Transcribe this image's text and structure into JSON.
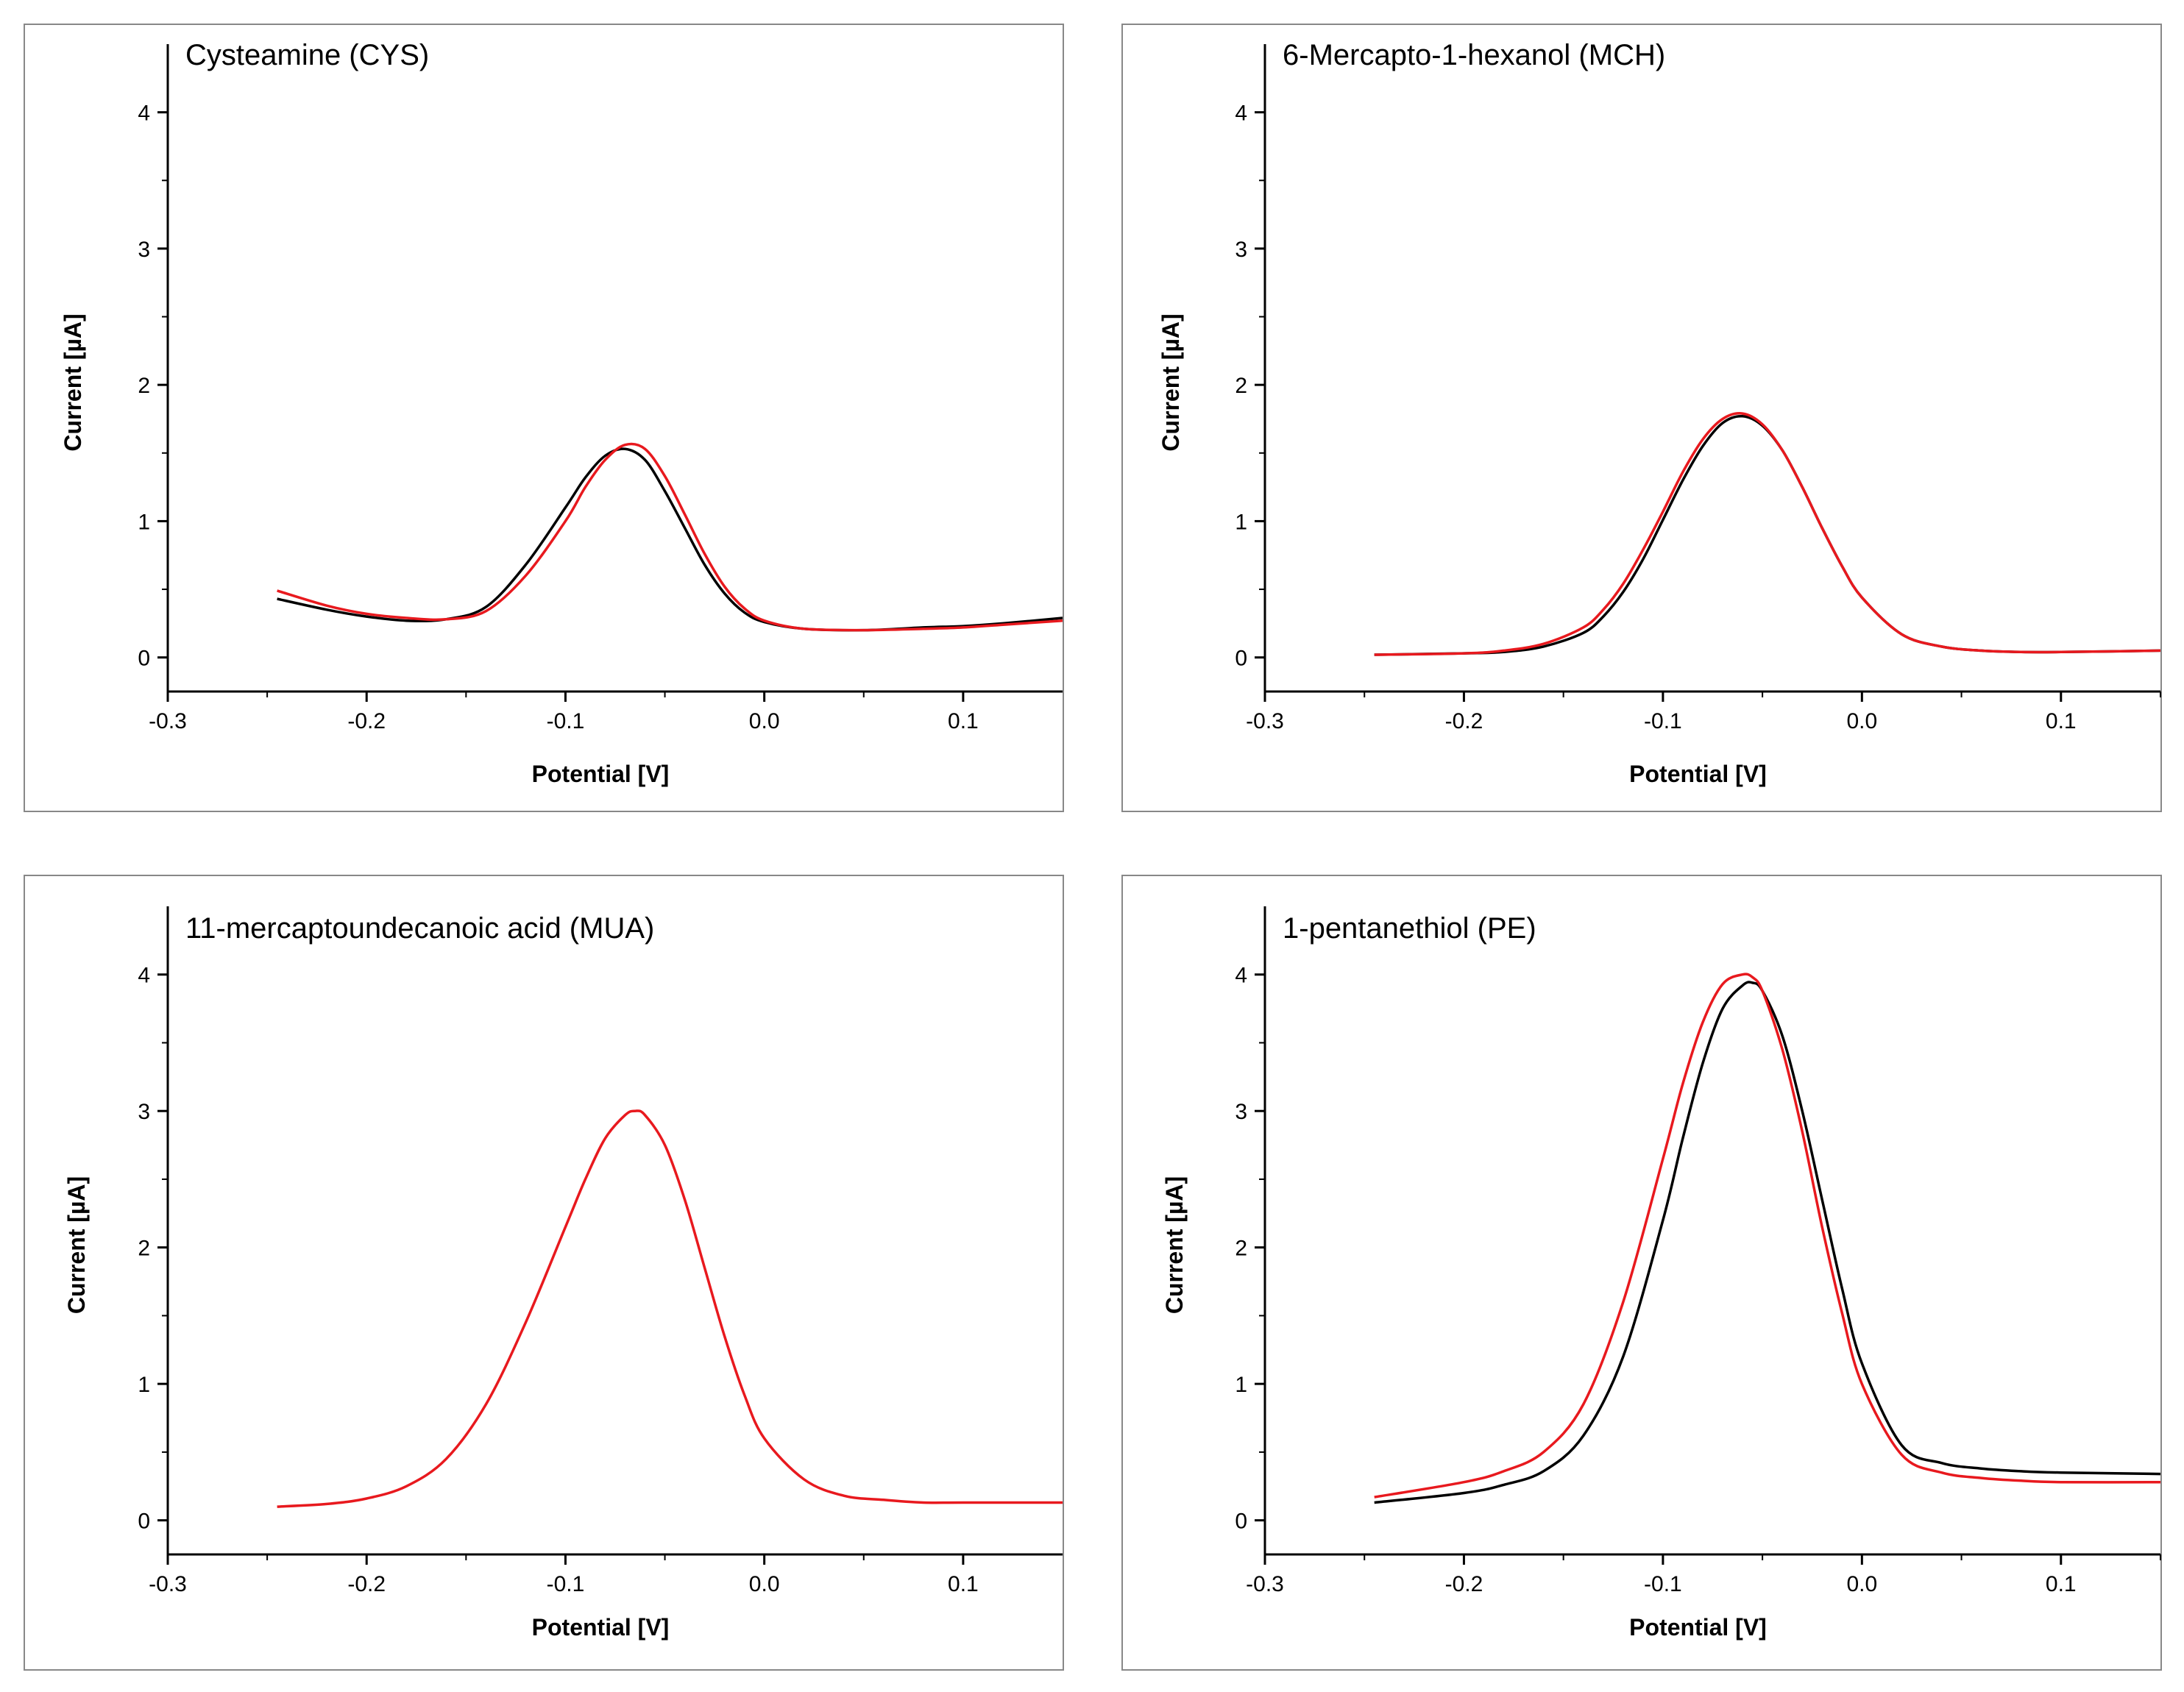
{
  "chart_data": [
    {
      "type": "line",
      "title": "Cysteamine (CYS)",
      "xlabel": "Potential [V]",
      "ylabel": "Current [µA]",
      "xlim": [
        -0.3,
        0.15
      ],
      "ylim": [
        -0.25,
        4.5
      ],
      "xticks": [
        -0.3,
        -0.2,
        -0.1,
        0.0,
        0.1
      ],
      "xtick_labels": [
        "-0.3",
        "-0.2",
        "-0.1",
        "0.0",
        "0.1"
      ],
      "yticks": [
        0,
        1,
        2,
        3,
        4
      ],
      "ytick_labels": [
        "0",
        "1",
        "2",
        "3",
        "4"
      ],
      "grid": false,
      "series": [
        {
          "name": "black",
          "color": "#000000",
          "x": [
            -0.245,
            -0.22,
            -0.2,
            -0.18,
            -0.16,
            -0.14,
            -0.12,
            -0.1,
            -0.09,
            -0.08,
            -0.07,
            -0.06,
            -0.05,
            -0.04,
            -0.03,
            -0.02,
            -0.01,
            0.0,
            0.02,
            0.05,
            0.08,
            0.1,
            0.12,
            0.15
          ],
          "y": [
            0.43,
            0.35,
            0.3,
            0.27,
            0.28,
            0.37,
            0.68,
            1.1,
            1.32,
            1.48,
            1.53,
            1.45,
            1.22,
            0.95,
            0.68,
            0.47,
            0.33,
            0.26,
            0.21,
            0.2,
            0.22,
            0.23,
            0.25,
            0.29
          ]
        },
        {
          "name": "red",
          "color": "#e8191e",
          "x": [
            -0.245,
            -0.22,
            -0.2,
            -0.18,
            -0.16,
            -0.14,
            -0.12,
            -0.1,
            -0.09,
            -0.08,
            -0.07,
            -0.06,
            -0.05,
            -0.04,
            -0.03,
            -0.02,
            -0.01,
            0.0,
            0.02,
            0.05,
            0.08,
            0.1,
            0.12,
            0.15
          ],
          "y": [
            0.49,
            0.38,
            0.32,
            0.29,
            0.28,
            0.34,
            0.6,
            1.0,
            1.25,
            1.45,
            1.56,
            1.53,
            1.33,
            1.05,
            0.76,
            0.52,
            0.36,
            0.27,
            0.21,
            0.2,
            0.21,
            0.22,
            0.24,
            0.27
          ]
        }
      ]
    },
    {
      "type": "line",
      "title": "6-Mercapto-1-hexanol (MCH)",
      "xlabel": "Potential [V]",
      "ylabel": "Current [µA]",
      "xlim": [
        -0.3,
        0.15
      ],
      "ylim": [
        -0.25,
        4.5
      ],
      "xticks": [
        -0.3,
        -0.2,
        -0.1,
        0.0,
        0.1
      ],
      "xtick_labels": [
        "-0.3",
        "-0.2",
        "-0.1",
        "0.0",
        "0.1"
      ],
      "yticks": [
        0,
        1,
        2,
        3,
        4
      ],
      "ytick_labels": [
        "0",
        "1",
        "2",
        "3",
        "4"
      ],
      "grid": false,
      "series": [
        {
          "name": "black",
          "color": "#000000",
          "x": [
            -0.245,
            -0.2,
            -0.18,
            -0.16,
            -0.14,
            -0.13,
            -0.12,
            -0.11,
            -0.1,
            -0.09,
            -0.08,
            -0.07,
            -0.06,
            -0.05,
            -0.04,
            -0.03,
            -0.02,
            -0.01,
            0.0,
            0.02,
            0.04,
            0.06,
            0.08,
            0.1,
            0.15
          ],
          "y": [
            0.02,
            0.03,
            0.04,
            0.08,
            0.18,
            0.3,
            0.48,
            0.72,
            1.01,
            1.3,
            1.55,
            1.72,
            1.77,
            1.7,
            1.52,
            1.25,
            0.95,
            0.67,
            0.44,
            0.17,
            0.08,
            0.05,
            0.04,
            0.04,
            0.05
          ]
        },
        {
          "name": "red",
          "color": "#e8191e",
          "x": [
            -0.245,
            -0.2,
            -0.18,
            -0.16,
            -0.14,
            -0.13,
            -0.12,
            -0.11,
            -0.1,
            -0.09,
            -0.08,
            -0.07,
            -0.06,
            -0.05,
            -0.04,
            -0.03,
            -0.02,
            -0.01,
            0.0,
            0.02,
            0.04,
            0.06,
            0.08,
            0.1,
            0.15
          ],
          "y": [
            0.02,
            0.03,
            0.05,
            0.1,
            0.22,
            0.35,
            0.54,
            0.79,
            1.07,
            1.36,
            1.6,
            1.75,
            1.79,
            1.71,
            1.52,
            1.25,
            0.95,
            0.67,
            0.44,
            0.17,
            0.08,
            0.05,
            0.04,
            0.04,
            0.05
          ]
        }
      ]
    },
    {
      "type": "line",
      "title": "11-mercaptoundecanoic acid (MUA)",
      "xlabel": "Potential [V]",
      "ylabel": "Current [µA]",
      "xlim": [
        -0.3,
        0.15
      ],
      "ylim": [
        -0.25,
        4.5
      ],
      "xticks": [
        -0.3,
        -0.2,
        -0.1,
        0.0,
        0.1
      ],
      "xtick_labels": [
        "-0.3",
        "-0.2",
        "-0.1",
        "0.0",
        "0.1"
      ],
      "yticks": [
        0,
        1,
        2,
        3,
        4
      ],
      "ytick_labels": [
        "0",
        "1",
        "2",
        "3",
        "4"
      ],
      "grid": false,
      "series": [
        {
          "name": "red",
          "color": "#e8191e",
          "x": [
            -0.245,
            -0.22,
            -0.2,
            -0.18,
            -0.16,
            -0.14,
            -0.12,
            -0.1,
            -0.09,
            -0.08,
            -0.07,
            -0.065,
            -0.06,
            -0.05,
            -0.04,
            -0.03,
            -0.02,
            -0.01,
            0.0,
            0.02,
            0.04,
            0.06,
            0.08,
            0.1,
            0.15
          ],
          "y": [
            0.1,
            0.12,
            0.16,
            0.25,
            0.45,
            0.85,
            1.45,
            2.15,
            2.5,
            2.8,
            2.97,
            3.0,
            2.97,
            2.75,
            2.35,
            1.85,
            1.35,
            0.92,
            0.6,
            0.3,
            0.18,
            0.15,
            0.13,
            0.13,
            0.13
          ]
        }
      ]
    },
    {
      "type": "line",
      "title": "1-pentanethiol (PE)",
      "xlabel": "Potential [V]",
      "ylabel": "Current [µA]",
      "xlim": [
        -0.3,
        0.15
      ],
      "ylim": [
        -0.25,
        4.5
      ],
      "xticks": [
        -0.3,
        -0.2,
        -0.1,
        0.0,
        0.1
      ],
      "xtick_labels": [
        "-0.3",
        "-0.2",
        "-0.1",
        "0.0",
        "0.1"
      ],
      "yticks": [
        0,
        1,
        2,
        3,
        4
      ],
      "ytick_labels": [
        "0",
        "1",
        "2",
        "3",
        "4"
      ],
      "grid": false,
      "series": [
        {
          "name": "black",
          "color": "#000000",
          "x": [
            -0.245,
            -0.2,
            -0.18,
            -0.16,
            -0.14,
            -0.12,
            -0.1,
            -0.09,
            -0.08,
            -0.07,
            -0.06,
            -0.055,
            -0.05,
            -0.04,
            -0.03,
            -0.02,
            -0.01,
            0.0,
            0.02,
            0.04,
            0.06,
            0.08,
            0.1,
            0.15
          ],
          "y": [
            0.13,
            0.2,
            0.26,
            0.36,
            0.62,
            1.2,
            2.2,
            2.8,
            3.35,
            3.75,
            3.92,
            3.94,
            3.88,
            3.55,
            3.0,
            2.35,
            1.7,
            1.15,
            0.55,
            0.42,
            0.38,
            0.36,
            0.35,
            0.34
          ]
        },
        {
          "name": "red",
          "color": "#e8191e",
          "x": [
            -0.245,
            -0.2,
            -0.18,
            -0.16,
            -0.14,
            -0.12,
            -0.1,
            -0.09,
            -0.08,
            -0.07,
            -0.06,
            -0.055,
            -0.05,
            -0.04,
            -0.03,
            -0.02,
            -0.01,
            0.0,
            0.02,
            0.04,
            0.06,
            0.08,
            0.1,
            0.15
          ],
          "y": [
            0.17,
            0.28,
            0.36,
            0.5,
            0.85,
            1.6,
            2.65,
            3.2,
            3.65,
            3.93,
            4.0,
            3.98,
            3.88,
            3.45,
            2.85,
            2.15,
            1.52,
            1.0,
            0.48,
            0.35,
            0.31,
            0.29,
            0.28,
            0.28
          ]
        }
      ]
    }
  ]
}
